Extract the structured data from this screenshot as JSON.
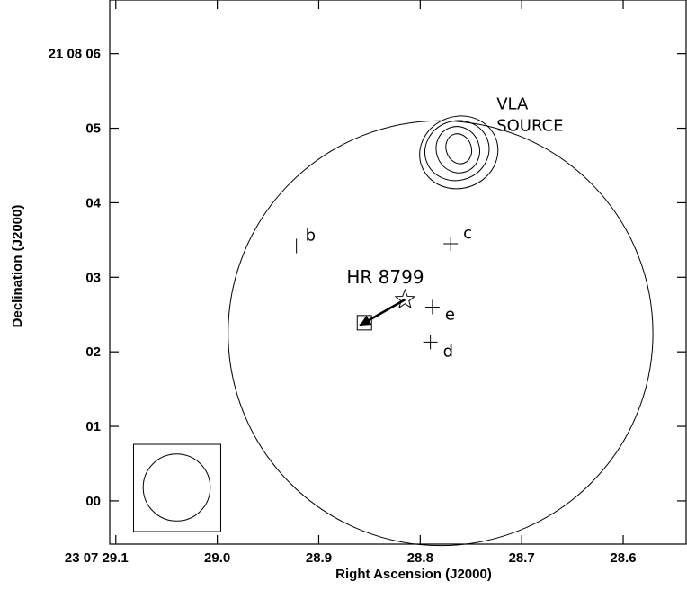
{
  "chart_data": {
    "type": "scatter",
    "title": "",
    "xlabel": "Right Ascension (J2000)",
    "ylabel": "Declination (J2000)",
    "x_tick_labels": [
      "23 07 29.1",
      "29.0",
      "28.9",
      "28.8",
      "28.7",
      "28.6"
    ],
    "x_tick_values": [
      29.1,
      29.0,
      28.9,
      28.8,
      28.7,
      28.6
    ],
    "y_tick_labels": [
      "00",
      "01",
      "02",
      "03",
      "04",
      "05",
      "21 08 06"
    ],
    "y_tick_values": [
      0,
      1,
      2,
      3,
      4,
      5,
      6
    ],
    "x_reversed": true,
    "xlim": [
      29.106,
      28.538
    ],
    "ylim": [
      -0.58,
      6.72
    ],
    "grid": false,
    "field_circle": {
      "center": [
        28.78,
        2.25
      ],
      "radius_arcsec": 2.85
    },
    "beam_circle": {
      "center": [
        29.04,
        0.18
      ],
      "radius_arcsec": 0.45
    },
    "star": {
      "label": "HR 8799",
      "x": 28.815,
      "y": 2.7
    },
    "proper_motion_arrow": {
      "from": [
        28.815,
        2.7
      ],
      "to": [
        28.855,
        2.39
      ]
    },
    "square_marker": {
      "x": 28.855,
      "y": 2.39
    },
    "planets": [
      {
        "label": "b",
        "x": 28.922,
        "y": 3.42
      },
      {
        "label": "c",
        "x": 28.77,
        "y": 3.45
      },
      {
        "label": "e",
        "x": 28.788,
        "y": 2.6
      },
      {
        "label": "d",
        "x": 28.79,
        "y": 2.13
      }
    ],
    "vla_source": {
      "label_line1": "VLA",
      "label_line2": "SOURCE",
      "center": [
        28.762,
        4.7
      ],
      "contour_levels": 4
    }
  }
}
